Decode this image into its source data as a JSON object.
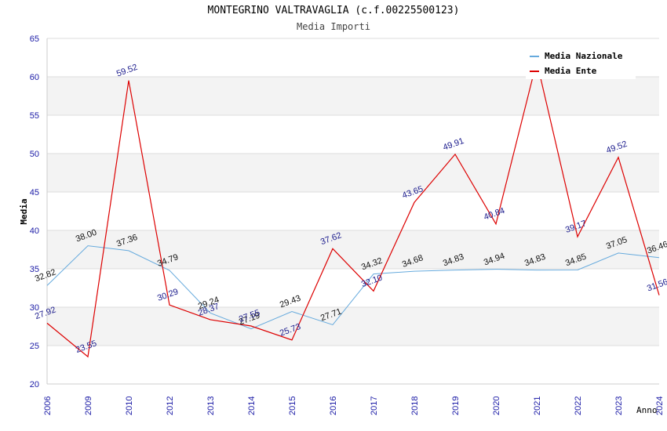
{
  "header": {
    "title": "MONTEGRINO VALTRAVAGLIA (c.f.00225500123)",
    "subtitle": "Media Importi"
  },
  "chart_data": {
    "type": "line",
    "title": "MONTEGRINO VALTRAVAGLIA (c.f.00225500123)",
    "subtitle": "Media Importi",
    "xlabel": "Anno",
    "ylabel": "Media",
    "ylim": [
      20,
      65
    ],
    "yticks": [
      20,
      25,
      30,
      35,
      40,
      45,
      50,
      55,
      60,
      65
    ],
    "grid": true,
    "legend_position": "top-right",
    "categories": [
      "2006",
      "2009",
      "2010",
      "2012",
      "2013",
      "2014",
      "2015",
      "2016",
      "2017",
      "2018",
      "2019",
      "2020",
      "2021",
      "2022",
      "2023",
      "2024"
    ],
    "series": [
      {
        "name": "Media Nazionale",
        "color": "#66aadd",
        "values": [
          32.82,
          38.0,
          37.36,
          34.79,
          29.24,
          27.19,
          29.43,
          27.71,
          34.32,
          34.68,
          34.83,
          34.94,
          34.83,
          34.85,
          37.05,
          36.46
        ],
        "labels": [
          "32.82",
          "38.00",
          "37.36",
          "34.79",
          "29.24",
          "27.19",
          "29.43",
          "27.71",
          "34.32",
          "34.68",
          "34.83",
          "34.94",
          "34.83",
          "34.85",
          "37.05",
          "36.46"
        ]
      },
      {
        "name": "Media Ente",
        "color": "#dd0000",
        "values": [
          27.92,
          23.55,
          59.52,
          30.29,
          28.37,
          27.55,
          25.73,
          37.62,
          32.1,
          43.65,
          49.91,
          40.84,
          62.0,
          39.17,
          49.52,
          31.56
        ],
        "labels": [
          "27.92",
          "23.55",
          "59.52",
          "30.29",
          "28.37",
          "27.55",
          "25.73",
          "37.62",
          "32.10",
          "43.65",
          "49.91",
          "40.84",
          "",
          "39.17",
          "49.52",
          "31.56"
        ]
      }
    ]
  }
}
